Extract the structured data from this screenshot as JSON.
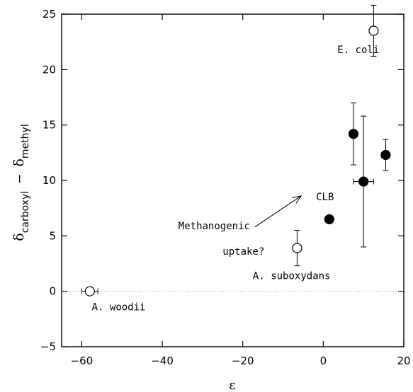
{
  "chart_data": {
    "type": "scatter",
    "xlabel": "ε",
    "ylabel": {
      "delta": "δ",
      "sub1": "carboxyl",
      "minus": "−",
      "sub2": "methyl"
    },
    "xlim": [
      -65,
      20
    ],
    "ylim": [
      -5,
      25
    ],
    "x_ticks": [
      -60,
      -40,
      -20,
      0,
      20
    ],
    "x_tick_labels": [
      "−60",
      "−40",
      "−20",
      "0",
      "20"
    ],
    "y_ticks": [
      -5,
      0,
      5,
      10,
      15,
      20,
      25
    ],
    "y_tick_labels": [
      "−5",
      "0",
      "5",
      "10",
      "15",
      "20",
      "25"
    ],
    "grid": false,
    "zero_line": true,
    "points": [
      {
        "x": -58,
        "y": 0.0,
        "filled": false,
        "xerr": 2,
        "yerr": 0
      },
      {
        "x": -6.5,
        "y": 3.9,
        "filled": false,
        "xerr": 1.0,
        "yerr": 1.6
      },
      {
        "x": 1.5,
        "y": 6.5,
        "filled": true,
        "xerr": 0,
        "yerr": 0
      },
      {
        "x": 7.5,
        "y": 14.2,
        "filled": true,
        "xerr": 0,
        "yerr": 2.8
      },
      {
        "x": 10,
        "y": 9.9,
        "filled": true,
        "xerr": 2.5,
        "yerr": 5.9
      },
      {
        "x": 15.5,
        "y": 12.3,
        "filled": true,
        "xerr": 1.0,
        "yerr": 1.4
      },
      {
        "x": 12.5,
        "y": 23.5,
        "filled": false,
        "xerr": 0,
        "yerr": 2.3
      }
    ],
    "annotations": [
      {
        "text": "E. coli",
        "x": 3.5,
        "y": 21.5
      },
      {
        "text": "CLB",
        "x": -1.8,
        "y": 8.2
      },
      {
        "text": "Methanogenic",
        "x": -36,
        "y": 5.6
      },
      {
        "text": "uptake?",
        "x": -25,
        "y": 3.3
      },
      {
        "text": "A. suboxydans",
        "x": -17.5,
        "y": 1.1
      },
      {
        "text": "A. woodii",
        "x": -57.5,
        "y": -1.7
      }
    ],
    "arrow": {
      "from": [
        -17,
        5.8
      ],
      "to": [
        -5.5,
        8.6
      ]
    }
  }
}
